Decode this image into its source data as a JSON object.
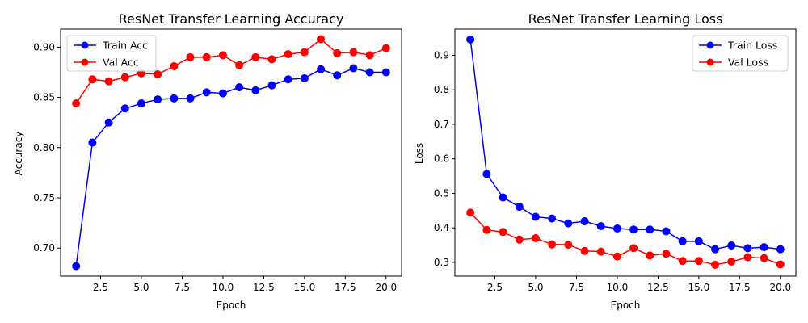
{
  "chart_data": [
    {
      "type": "line",
      "title": "ResNet Transfer Learning Accuracy",
      "xlabel": "Epoch",
      "ylabel": "Accuracy",
      "x": [
        1,
        2,
        3,
        4,
        5,
        6,
        7,
        8,
        9,
        10,
        11,
        12,
        13,
        14,
        15,
        16,
        17,
        18,
        19,
        20
      ],
      "xlim": [
        0.05,
        20.95
      ],
      "ylim": [
        0.672,
        0.918
      ],
      "xticks": [
        2.5,
        5.0,
        7.5,
        10.0,
        12.5,
        15.0,
        17.5,
        20.0
      ],
      "xtick_labels": [
        "2.5",
        "5.0",
        "7.5",
        "10.0",
        "12.5",
        "15.0",
        "17.5",
        "20.0"
      ],
      "yticks": [
        0.7,
        0.75,
        0.8,
        0.85,
        0.9
      ],
      "ytick_labels": [
        "0.70",
        "0.75",
        "0.80",
        "0.85",
        "0.90"
      ],
      "grid": false,
      "legend_position": "top-left",
      "series": [
        {
          "name": "Train Acc",
          "color": "#0000ff",
          "values": [
            0.682,
            0.805,
            0.825,
            0.839,
            0.844,
            0.848,
            0.849,
            0.849,
            0.855,
            0.854,
            0.86,
            0.857,
            0.862,
            0.868,
            0.869,
            0.878,
            0.872,
            0.879,
            0.875,
            0.875
          ]
        },
        {
          "name": "Val Acc",
          "color": "#ff0000",
          "values": [
            0.844,
            0.868,
            0.866,
            0.87,
            0.874,
            0.873,
            0.881,
            0.89,
            0.89,
            0.892,
            0.882,
            0.89,
            0.888,
            0.893,
            0.895,
            0.908,
            0.894,
            0.895,
            0.892,
            0.899
          ]
        }
      ]
    },
    {
      "type": "line",
      "title": "ResNet Transfer Learning Loss",
      "xlabel": "Epoch",
      "ylabel": "Loss",
      "x": [
        1,
        2,
        3,
        4,
        5,
        6,
        7,
        8,
        9,
        10,
        11,
        12,
        13,
        14,
        15,
        16,
        17,
        18,
        19,
        20
      ],
      "xlim": [
        0.05,
        20.95
      ],
      "ylim": [
        0.26,
        0.976
      ],
      "xticks": [
        2.5,
        5.0,
        7.5,
        10.0,
        12.5,
        15.0,
        17.5,
        20.0
      ],
      "xtick_labels": [
        "2.5",
        "5.0",
        "7.5",
        "10.0",
        "12.5",
        "15.0",
        "17.5",
        "20.0"
      ],
      "yticks": [
        0.3,
        0.4,
        0.5,
        0.6,
        0.7,
        0.8,
        0.9
      ],
      "ytick_labels": [
        "0.3",
        "0.4",
        "0.5",
        "0.6",
        "0.7",
        "0.8",
        "0.9"
      ],
      "grid": false,
      "legend_position": "top-right",
      "series": [
        {
          "name": "Train Loss",
          "color": "#0000ff",
          "values": [
            0.946,
            0.556,
            0.488,
            0.461,
            0.432,
            0.427,
            0.413,
            0.419,
            0.405,
            0.398,
            0.395,
            0.395,
            0.39,
            0.361,
            0.361,
            0.338,
            0.349,
            0.341,
            0.344,
            0.338
          ]
        },
        {
          "name": "Val Loss",
          "color": "#ff0000",
          "values": [
            0.444,
            0.394,
            0.388,
            0.366,
            0.37,
            0.352,
            0.351,
            0.333,
            0.331,
            0.317,
            0.341,
            0.32,
            0.325,
            0.304,
            0.304,
            0.293,
            0.302,
            0.315,
            0.312,
            0.294
          ]
        }
      ]
    }
  ]
}
